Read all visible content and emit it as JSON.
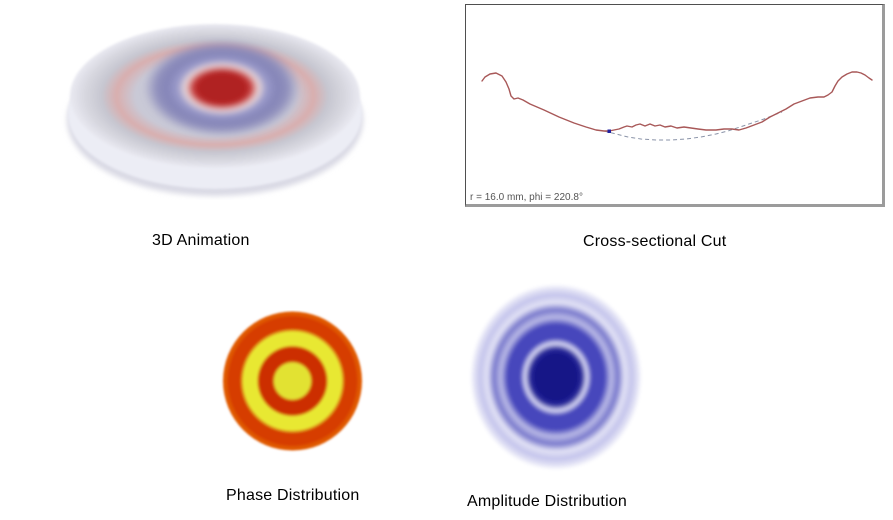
{
  "page": {
    "background": "#ffffff"
  },
  "panels": {
    "animation3d": {
      "label": "3D Animation",
      "description": "3D rendering of vibrating circular plate, red antinode peak offset of center, blue nodal ring",
      "colors": {
        "peak_red": "#b02020",
        "peak_red_light": "#cc4444",
        "inner_ring_white": "#ead9d9",
        "node_blue_light": "#9b9bcb",
        "node_blue": "#8585b8",
        "surface_gray": "#c9c9d6",
        "ring_salmon": "#d9aeae",
        "outer_gray": "#c6c6d0",
        "pale_gray": "#d8d8e0",
        "rim_white": "#e9e9f1",
        "rim_side": "#ecedf5",
        "rim_shadow": "#d9d9e4"
      }
    },
    "cross_section": {
      "label": "Cross-sectional Cut",
      "readout": "r = 16.0 mm, phi = 220.8°",
      "curve_color": "#a85858",
      "reference_color": "#8a93a8",
      "marker_color": "#2020a0",
      "curve_points": [
        [
          16,
          76
        ],
        [
          19,
          72
        ],
        [
          24,
          69
        ],
        [
          30,
          68
        ],
        [
          36,
          71
        ],
        [
          40,
          77
        ],
        [
          43,
          84
        ],
        [
          45,
          91
        ],
        [
          48,
          94
        ],
        [
          52,
          93
        ],
        [
          57,
          95
        ],
        [
          64,
          99
        ],
        [
          78,
          105
        ],
        [
          93,
          112
        ],
        [
          108,
          118
        ],
        [
          120,
          122
        ],
        [
          130,
          125
        ],
        [
          138,
          126
        ],
        [
          143,
          126
        ],
        [
          148,
          125
        ],
        [
          153,
          124
        ],
        [
          158,
          122
        ],
        [
          161,
          121
        ],
        [
          166,
          122
        ],
        [
          170,
          120
        ],
        [
          174,
          119
        ],
        [
          179,
          121
        ],
        [
          184,
          119
        ],
        [
          189,
          121
        ],
        [
          194,
          120
        ],
        [
          199,
          122
        ],
        [
          205,
          121
        ],
        [
          211,
          123
        ],
        [
          218,
          122
        ],
        [
          225,
          123
        ],
        [
          232,
          124
        ],
        [
          240,
          125
        ],
        [
          250,
          125
        ],
        [
          258,
          124
        ],
        [
          266,
          124
        ],
        [
          273,
          125
        ],
        [
          280,
          123
        ],
        [
          288,
          120
        ],
        [
          296,
          117
        ],
        [
          304,
          112
        ],
        [
          312,
          108
        ],
        [
          320,
          104
        ],
        [
          328,
          99
        ],
        [
          336,
          96
        ],
        [
          344,
          93
        ],
        [
          352,
          92
        ],
        [
          358,
          92
        ],
        [
          362,
          90
        ],
        [
          366,
          87
        ],
        [
          369,
          81
        ],
        [
          372,
          76
        ],
        [
          376,
          72
        ],
        [
          381,
          69
        ],
        [
          386,
          67
        ],
        [
          391,
          67
        ],
        [
          395,
          68
        ],
        [
          399,
          70
        ],
        [
          403,
          73
        ],
        [
          406,
          75
        ]
      ],
      "reference_points": [
        [
          138,
          126
        ],
        [
          150,
          129
        ],
        [
          162,
          132
        ],
        [
          175,
          134
        ],
        [
          190,
          135
        ],
        [
          205,
          135
        ],
        [
          220,
          134
        ],
        [
          235,
          132
        ],
        [
          250,
          129
        ],
        [
          262,
          126
        ],
        [
          274,
          122
        ],
        [
          286,
          118
        ],
        [
          298,
          114
        ],
        [
          308,
          110
        ],
        [
          316,
          107
        ]
      ],
      "marker_point": [
        143,
        126
      ]
    },
    "phase": {
      "label": "Phase Distribution",
      "description": "Circular phase map: yellow core, red annulus, yellow ring, red-orange outer band, orange rim",
      "colors": {
        "center_yellow": "#e2e233",
        "ring_red": "#cc2d00",
        "ring_yellow": "#e8e832",
        "outer_red": "#d63c00",
        "rim_orange": "#e05a00"
      }
    },
    "amplitude": {
      "label": "Amplitude Distribution",
      "description": "Elliptical amplitude map: dark navy core with concentric blue rings fading to white",
      "colors": {
        "core_navy": "#141487",
        "core_edge": "#2c2c9c",
        "bright_ring": "#d8d8f2",
        "mid_blue": "#4747bc",
        "light_ring": "#b9b9e6",
        "outer_blue": "#7b7bcd",
        "white_ring": "#e2e2f5",
        "faint_blue": "#c5c5ec",
        "edge_white": "#ffffff"
      }
    }
  }
}
